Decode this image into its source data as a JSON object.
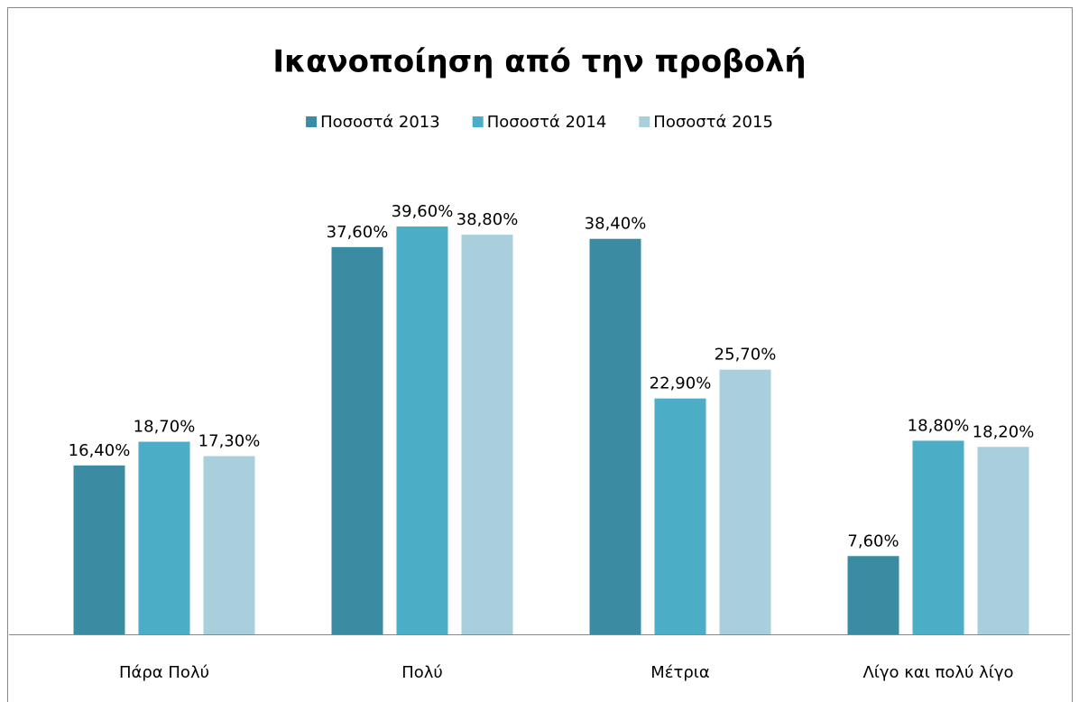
{
  "chart_data": {
    "type": "bar",
    "title": "Ικανοποίηση από την προβολή",
    "categories": [
      "Πάρα Πολύ",
      "Πολύ",
      "Μέτρια",
      "Λίγο και πολύ λίγο"
    ],
    "series": [
      {
        "name": "Ποσοστά 2013",
        "color": "#3b8ca3",
        "values": [
          16.4,
          37.6,
          38.4,
          7.6
        ],
        "value_labels": [
          "16,40%",
          "37,60%",
          "38,40%",
          "7,60%"
        ]
      },
      {
        "name": "Ποσοστά 2014",
        "color": "#4badc6",
        "values": [
          18.7,
          39.6,
          22.9,
          18.8
        ],
        "value_labels": [
          "18,70%",
          "39,60%",
          "22,90%",
          "18,80%"
        ]
      },
      {
        "name": "Ποσοστά 2015",
        "color": "#a9cfdc",
        "values": [
          17.3,
          38.8,
          25.7,
          18.2
        ],
        "value_labels": [
          "17,30%",
          "38,80%",
          "25,70%",
          "18,20%"
        ]
      }
    ],
    "legend": "top"
  }
}
